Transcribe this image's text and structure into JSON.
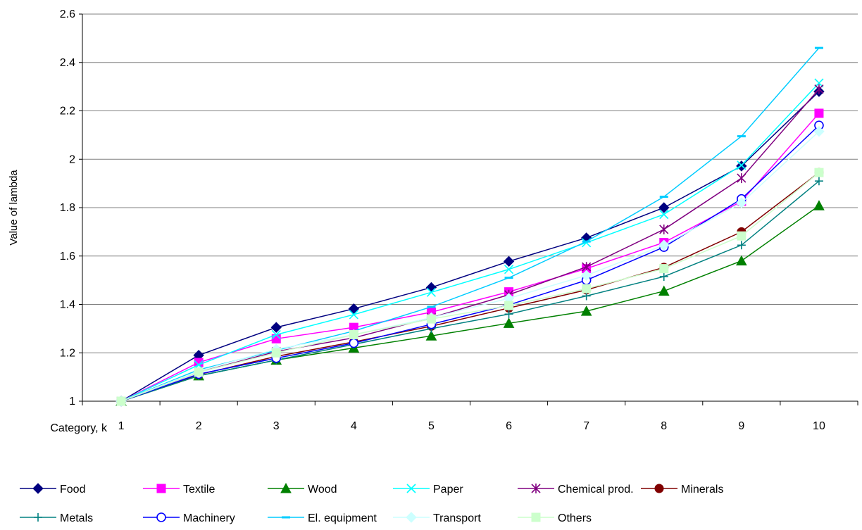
{
  "chart_data": {
    "type": "line",
    "ylabel": "Value of lambda",
    "xlabel": "Category, k",
    "ylim": [
      1,
      2.6
    ],
    "yticks": [
      "1",
      "1.2",
      "1.4",
      "1.6",
      "1.8",
      "2",
      "2.2",
      "2.4",
      "2.6"
    ],
    "categories": [
      "1",
      "2",
      "3",
      "4",
      "5",
      "6",
      "7",
      "8",
      "9",
      "10"
    ],
    "grid": "horizontal",
    "legend_position": "bottom",
    "series": [
      {
        "name": "Food",
        "color": "#000080",
        "marker": "diamond",
        "values": [
          1.0,
          1.19,
          1.305,
          1.382,
          1.47,
          1.578,
          1.675,
          1.8,
          1.972,
          2.28
        ]
      },
      {
        "name": "Textile",
        "color": "#ff00ff",
        "marker": "square",
        "values": [
          1.0,
          1.16,
          1.258,
          1.305,
          1.368,
          1.452,
          1.548,
          1.656,
          1.826,
          2.19
        ]
      },
      {
        "name": "Wood",
        "color": "#008000",
        "marker": "triangle",
        "values": [
          1.0,
          1.105,
          1.17,
          1.22,
          1.27,
          1.322,
          1.372,
          1.455,
          1.58,
          1.808
        ]
      },
      {
        "name": "Paper",
        "color": "#00ffff",
        "marker": "x",
        "values": [
          1.0,
          1.15,
          1.275,
          1.358,
          1.45,
          1.545,
          1.655,
          1.772,
          1.975,
          2.315
        ]
      },
      {
        "name": "Chemical prod.",
        "color": "#800080",
        "marker": "star",
        "values": [
          1.0,
          1.12,
          1.205,
          1.262,
          1.345,
          1.44,
          1.555,
          1.71,
          1.922,
          2.29
        ]
      },
      {
        "name": "Minerals",
        "color": "#800000",
        "marker": "circle-filled",
        "values": [
          1.0,
          1.11,
          1.185,
          1.245,
          1.31,
          1.385,
          1.46,
          1.553,
          1.7,
          1.945
        ]
      },
      {
        "name": "Metals",
        "color": "#008080",
        "marker": "plus",
        "values": [
          1.0,
          1.105,
          1.17,
          1.235,
          1.3,
          1.36,
          1.435,
          1.515,
          1.645,
          1.91
        ]
      },
      {
        "name": "Machinery",
        "color": "#0000ff",
        "marker": "circle-open",
        "values": [
          1.0,
          1.112,
          1.178,
          1.24,
          1.318,
          1.398,
          1.5,
          1.637,
          1.836,
          2.14
        ]
      },
      {
        "name": "El. equipment",
        "color": "#00ccff",
        "marker": "dash",
        "values": [
          1.0,
          1.13,
          1.21,
          1.29,
          1.39,
          1.51,
          1.66,
          1.845,
          2.095,
          2.46
        ]
      },
      {
        "name": "Transport",
        "color": "#ccffff",
        "marker": "diamond",
        "values": [
          1.0,
          1.125,
          1.215,
          1.275,
          1.345,
          1.425,
          1.52,
          1.645,
          1.82,
          2.115
        ]
      },
      {
        "name": "Others",
        "color": "#ccffcc",
        "marker": "square",
        "values": [
          1.0,
          1.12,
          1.2,
          1.275,
          1.34,
          1.395,
          1.465,
          1.548,
          1.683,
          1.945
        ]
      }
    ]
  }
}
